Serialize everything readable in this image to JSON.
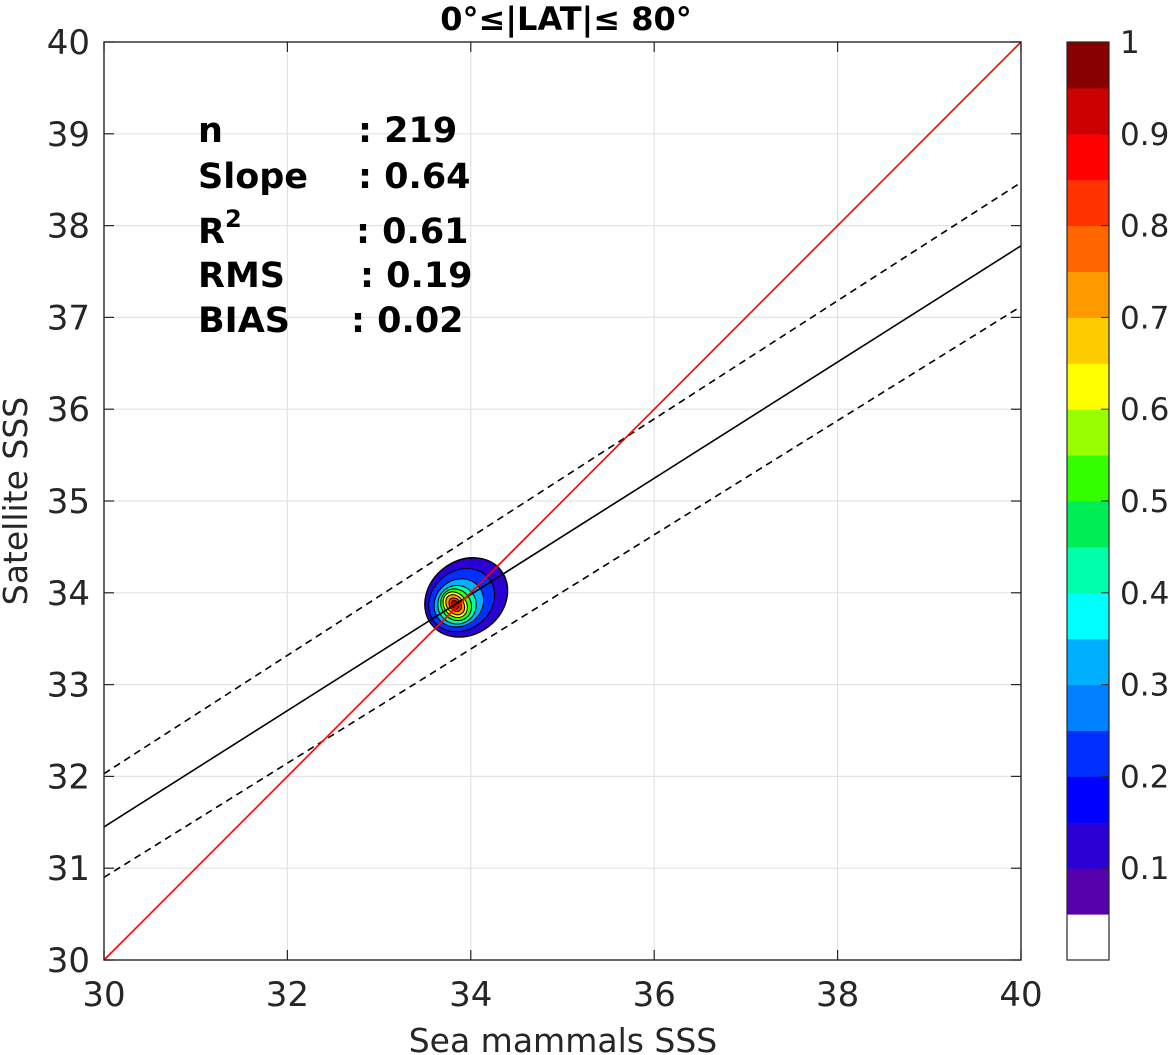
{
  "chart_data": {
    "type": "contour",
    "title": "0°≤|LAT|≤ 80°",
    "xlabel": "Sea mammals SSS",
    "ylabel": "Satellite SSS",
    "xlim": [
      30,
      40
    ],
    "ylim": [
      30,
      40
    ],
    "xticks": [
      "30",
      "32",
      "34",
      "36",
      "38",
      "40"
    ],
    "yticks": [
      "30",
      "31",
      "32",
      "33",
      "34",
      "35",
      "36",
      "37",
      "38",
      "39",
      "40"
    ],
    "grid": true,
    "stats": [
      {
        "name": "n",
        "value": ": 219"
      },
      {
        "name": "Slope",
        "value": ": 0.64"
      },
      {
        "name": "R",
        "sup": "2",
        "value": ": 0.61"
      },
      {
        "name": "RMS",
        "value": ": 0.19"
      },
      {
        "name": "BIAS",
        "value": ": 0.02"
      }
    ],
    "lines": {
      "identity": {
        "x": [
          30,
          40
        ],
        "y": [
          30,
          40
        ],
        "color": "#ff0000",
        "style": "solid"
      },
      "regression": {
        "x": [
          30,
          40
        ],
        "y": [
          31.45,
          37.78
        ],
        "color": "#000000",
        "style": "solid"
      },
      "upper_bound": {
        "x": [
          30,
          40
        ],
        "y": [
          32.03,
          38.47
        ],
        "color": "#000000",
        "style": "dashed"
      },
      "lower_bound": {
        "x": [
          30,
          40
        ],
        "y": [
          30.9,
          37.12
        ],
        "color": "#000000",
        "style": "dashed"
      }
    },
    "density_center": {
      "x": 33.85,
      "y": 33.87
    },
    "density_levels": [
      {
        "level": 0.1,
        "rx": 0.48,
        "ry": 0.4,
        "dx": 0.1,
        "dy": 0.08
      },
      {
        "level": 0.2,
        "rx": 0.38,
        "ry": 0.32,
        "dx": 0.05,
        "dy": 0.05
      },
      {
        "level": 0.3,
        "rx": 0.28,
        "ry": 0.25,
        "dx": 0.02,
        "dy": 0.02
      },
      {
        "level": 0.4,
        "rx": 0.21,
        "ry": 0.21,
        "dx": 0.0,
        "dy": 0.0
      },
      {
        "level": 0.5,
        "rx": 0.16,
        "ry": 0.18,
        "dx": -0.01,
        "dy": 0.0
      },
      {
        "level": 0.6,
        "rx": 0.12,
        "ry": 0.15,
        "dx": -0.02,
        "dy": 0.0
      },
      {
        "level": 0.7,
        "rx": 0.09,
        "ry": 0.12,
        "dx": -0.02,
        "dy": 0.0
      },
      {
        "level": 0.8,
        "rx": 0.06,
        "ry": 0.08,
        "dx": -0.02,
        "dy": 0.0
      },
      {
        "level": 0.9,
        "rx": 0.035,
        "ry": 0.05,
        "dx": -0.02,
        "dy": 0.0
      }
    ],
    "colorbar": {
      "range": [
        0,
        1
      ],
      "ticks": [
        "0.1",
        "0.2",
        "0.3",
        "0.4",
        "0.5",
        "0.6",
        "0.7",
        "0.8",
        "0.9",
        "1"
      ],
      "tick_values": [
        0.1,
        0.2,
        0.3,
        0.4,
        0.5,
        0.6,
        0.7,
        0.8,
        0.9,
        1.0
      ],
      "colors": [
        "#ffffff",
        "#5500aa",
        "#2a00d4",
        "#0000ff",
        "#0030ff",
        "#0080ff",
        "#00b0ff",
        "#00ffff",
        "#00ffaa",
        "#00ee55",
        "#33ff00",
        "#99ff00",
        "#ffff00",
        "#ffcc00",
        "#ff9900",
        "#ff6600",
        "#ff3300",
        "#ff0000",
        "#cc0000",
        "#880000"
      ]
    }
  }
}
